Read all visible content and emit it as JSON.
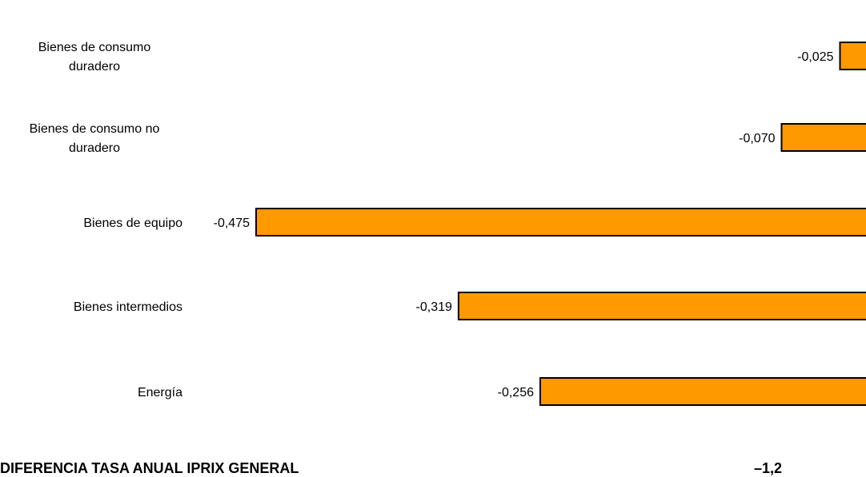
{
  "chart_data": {
    "type": "bar",
    "orientation": "horizontal",
    "categories": [
      [
        "Bienes de consumo",
        "duradero"
      ],
      [
        "Bienes de consumo no",
        "duradero"
      ],
      [
        "Bienes de equipo"
      ],
      [
        "Bienes intermedios"
      ],
      [
        "Energía"
      ]
    ],
    "values": [
      -0.025,
      -0.07,
      -0.475,
      -0.319,
      -0.256
    ],
    "value_labels": [
      "-0,025",
      "-0,070",
      "-0,475",
      "-0,319",
      "-0,256"
    ],
    "bar_color": "#FF9900",
    "bar_stroke": "#000000",
    "xlim": [
      -0.475,
      0
    ],
    "grid": false,
    "legend": "none"
  },
  "footer": {
    "label": "DIFERENCIA TASA ANUAL IPRIX GENERAL",
    "value": "–1,2"
  }
}
